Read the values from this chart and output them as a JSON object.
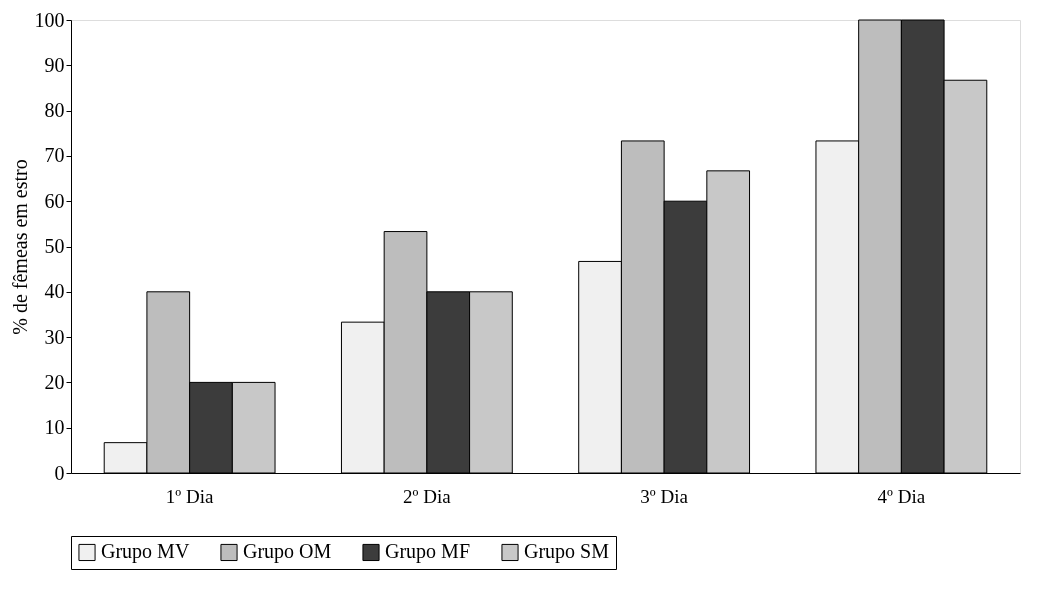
{
  "chart_data": {
    "type": "bar",
    "ylabel": "% de fêmeas em estro",
    "categories": [
      "1º Dia",
      "2º Dia",
      "3º Dia",
      "4º Dia"
    ],
    "series": [
      {
        "name": "Grupo MV",
        "color": "#f0f0f0",
        "values": [
          6.7,
          33.3,
          46.7,
          73.3
        ]
      },
      {
        "name": "Grupo OM",
        "color": "#bdbdbd",
        "values": [
          40,
          53.3,
          73.3,
          100
        ]
      },
      {
        "name": "Grupo MF",
        "color": "#3c3c3c",
        "values": [
          20,
          40,
          60,
          100
        ]
      },
      {
        "name": "Grupo SM",
        "color": "#c8c8c8",
        "values": [
          20,
          40,
          66.7,
          86.7
        ]
      }
    ],
    "ylim": [
      0,
      100
    ],
    "yticks": [
      0,
      10,
      20,
      30,
      40,
      50,
      60,
      70,
      80,
      90,
      100
    ],
    "grid": false,
    "legend": "bottom"
  }
}
